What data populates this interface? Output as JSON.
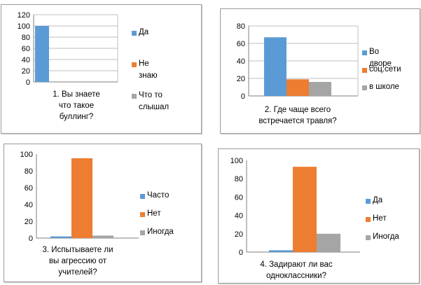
{
  "colors": {
    "series1": "#5b9bd5",
    "series2": "#ed7d31",
    "series3": "#a5a5a5",
    "grid": "#bfbfbf",
    "axis": "#7f7f7f"
  },
  "chart_data": [
    {
      "type": "bar",
      "title": "1. Вы знаете\nчто такое\nбуллинг?",
      "categories": [
        "1. Вы знаете что такое буллинг?"
      ],
      "series": [
        {
          "name": "Да",
          "values": [
            100
          ]
        },
        {
          "name": "Не знаю",
          "values": [
            0
          ]
        },
        {
          "name": "Что то\nслышал",
          "values": [
            0
          ]
        }
      ],
      "ylim": [
        0,
        120
      ],
      "yticks": [
        "0",
        "20",
        "40",
        "60",
        "80",
        "100",
        "120"
      ],
      "grid": true,
      "legend": "right"
    },
    {
      "type": "bar",
      "title": "2. Где чаще всего\nвстречается травля?",
      "categories": [
        "2. Где чаще всего встречается травля?"
      ],
      "series": [
        {
          "name": "Во дворе",
          "values": [
            67
          ]
        },
        {
          "name": "соц.сети",
          "values": [
            19
          ]
        },
        {
          "name": "в школе",
          "values": [
            16
          ]
        }
      ],
      "ylim": [
        0,
        80
      ],
      "yticks": [
        "0",
        "20",
        "40",
        "60",
        "80"
      ],
      "grid": true,
      "legend": "right"
    },
    {
      "type": "bar",
      "title": "3. Испытываете ли\nвы агрессию от\nучителей?",
      "categories": [
        "3. Испытываете ли вы агрессию от учителей?"
      ],
      "series": [
        {
          "name": "Часто",
          "values": [
            2
          ]
        },
        {
          "name": "Нет",
          "values": [
            95
          ]
        },
        {
          "name": "Иногда",
          "values": [
            3
          ]
        }
      ],
      "ylim": [
        0,
        100
      ],
      "yticks": [
        "0",
        "20",
        "40",
        "60",
        "80",
        "100"
      ],
      "grid": false,
      "legend": "right"
    },
    {
      "type": "bar",
      "title": "4. Задирают  ли вас\nодноклассники?",
      "categories": [
        "4. Задирают ли вас одноклассники?"
      ],
      "series": [
        {
          "name": "Да",
          "values": [
            2
          ]
        },
        {
          "name": "Нет",
          "values": [
            93
          ]
        },
        {
          "name": "Иногда",
          "values": [
            20
          ]
        }
      ],
      "ylim": [
        0,
        100
      ],
      "yticks": [
        "0",
        "20",
        "40",
        "60",
        "80",
        "100"
      ],
      "grid": false,
      "legend": "right"
    }
  ]
}
